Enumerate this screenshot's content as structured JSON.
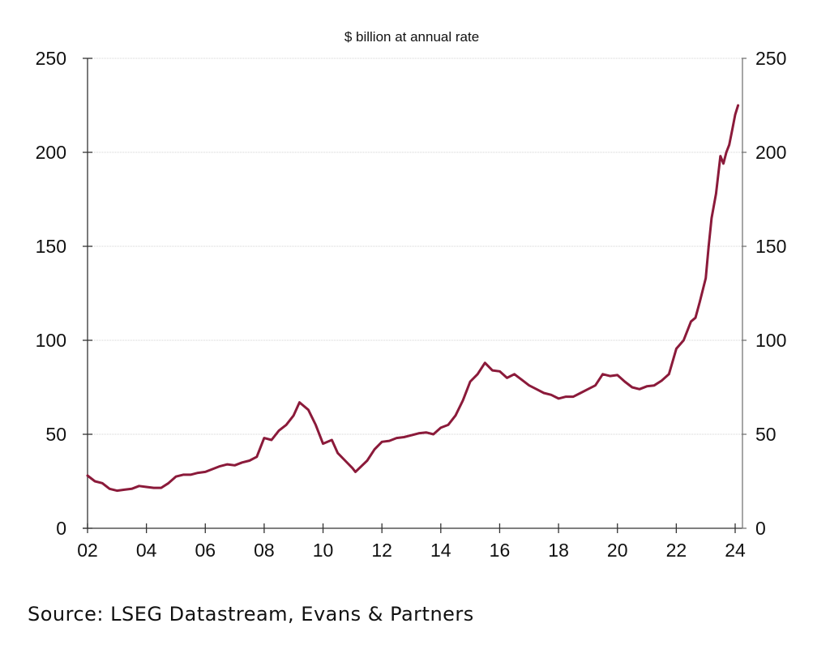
{
  "chart_data": {
    "type": "line",
    "title": "",
    "subtitle": "$ billion at annual rate",
    "xlabel": "",
    "ylabel": "",
    "xlim": [
      2002,
      2024.2
    ],
    "ylim": [
      0,
      250
    ],
    "x_ticks": [
      2002,
      2004,
      2006,
      2008,
      2010,
      2012,
      2014,
      2016,
      2018,
      2020,
      2022,
      2024
    ],
    "x_tick_labels": [
      "02",
      "04",
      "06",
      "08",
      "10",
      "12",
      "14",
      "16",
      "18",
      "20",
      "22",
      "24"
    ],
    "y_ticks": [
      0,
      50,
      100,
      150,
      200,
      250
    ],
    "y_tick_labels": [
      "0",
      "50",
      "100",
      "150",
      "200",
      "250"
    ],
    "right_axis_mirrors_left": true,
    "grid": "horizontal",
    "legend": "none",
    "series": [
      {
        "name": "$ billion at annual rate",
        "color": "#8b1a3a",
        "x": [
          2002.0,
          2002.25,
          2002.5,
          2002.75,
          2003.0,
          2003.25,
          2003.5,
          2003.75,
          2004.0,
          2004.25,
          2004.5,
          2004.75,
          2005.0,
          2005.25,
          2005.5,
          2005.75,
          2006.0,
          2006.25,
          2006.5,
          2006.75,
          2007.0,
          2007.25,
          2007.5,
          2007.75,
          2008.0,
          2008.25,
          2008.5,
          2008.75,
          2009.0,
          2009.2,
          2009.5,
          2009.75,
          2010.0,
          2010.3,
          2010.5,
          2010.75,
          2011.0,
          2011.1,
          2011.5,
          2011.75,
          2012.0,
          2012.25,
          2012.5,
          2012.75,
          2013.0,
          2013.25,
          2013.5,
          2013.75,
          2014.0,
          2014.25,
          2014.5,
          2014.75,
          2015.0,
          2015.25,
          2015.5,
          2015.75,
          2016.0,
          2016.25,
          2016.5,
          2016.75,
          2017.0,
          2017.25,
          2017.5,
          2017.75,
          2018.0,
          2018.25,
          2018.5,
          2018.75,
          2019.0,
          2019.25,
          2019.5,
          2019.75,
          2020.0,
          2020.25,
          2020.5,
          2020.75,
          2021.0,
          2021.25,
          2021.5,
          2021.75,
          2022.0,
          2022.25,
          2022.5,
          2022.65,
          2022.8,
          2023.0,
          2023.1,
          2023.2,
          2023.35,
          2023.5,
          2023.6,
          2023.7,
          2023.8,
          2023.9,
          2024.0,
          2024.1
        ],
        "values": [
          28,
          25,
          24,
          21,
          20,
          20.5,
          21,
          22.5,
          22,
          21.5,
          21.5,
          24,
          27.5,
          28.5,
          28.5,
          29.5,
          30,
          31.5,
          33,
          34,
          33.5,
          35,
          36,
          38,
          48,
          47,
          52,
          55,
          60,
          67,
          63,
          55,
          45,
          47,
          40,
          36,
          32,
          30,
          36,
          42,
          46,
          46.5,
          48,
          48.5,
          49.5,
          50.5,
          51,
          50,
          53.5,
          55,
          60,
          68,
          78,
          82,
          88,
          84,
          83.5,
          80,
          82,
          79,
          76,
          74,
          72,
          71,
          69,
          70,
          70,
          72,
          74,
          76,
          82,
          81,
          81.5,
          78,
          75,
          74,
          75.5,
          76,
          78.5,
          82,
          95.5,
          100,
          110,
          112,
          120.5,
          133,
          150,
          165,
          178,
          198,
          194,
          200,
          204,
          212,
          220,
          225
        ]
      }
    ]
  },
  "source": "Source: LSEG Datastream, Evans & Partners"
}
